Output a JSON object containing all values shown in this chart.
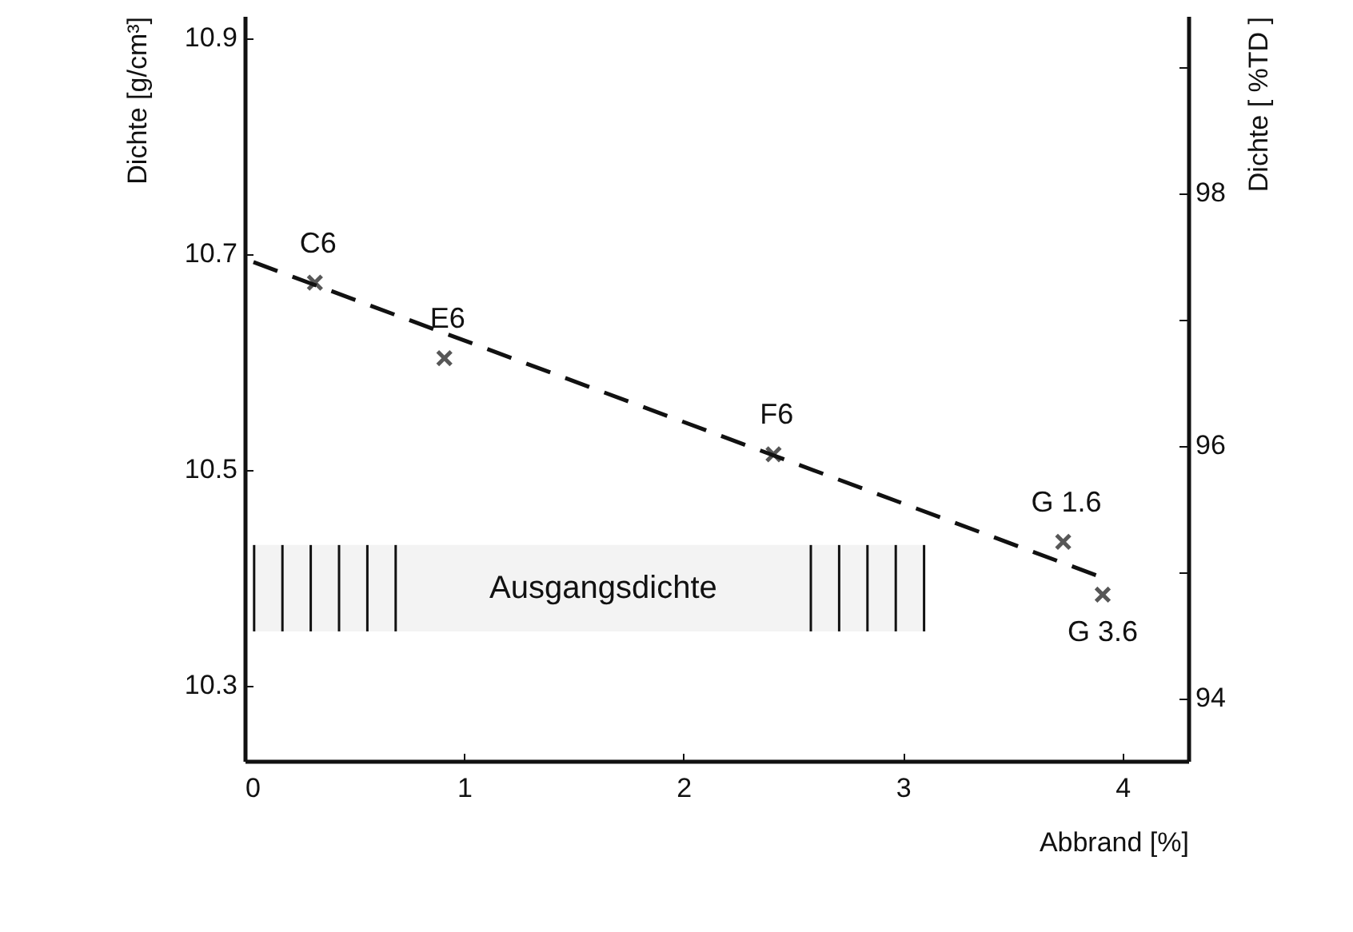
{
  "chart_data": {
    "type": "scatter",
    "xlabel": "Abbrand [%]",
    "ylabel": "Dichte [g/cm³]",
    "y2label": "Dichte [ %TD ]",
    "xlim": [
      0,
      4.3
    ],
    "xticks": [
      0,
      1,
      2,
      3,
      4
    ],
    "ylim": [
      10.23,
      10.92
    ],
    "yticks": [
      10.3,
      10.5,
      10.7,
      10.9
    ],
    "y2lim": [
      93.5,
      99.4
    ],
    "y2ticks": [
      94,
      {
        "value": 95,
        "label": null
      },
      96,
      {
        "value": 97,
        "label": null
      },
      98,
      {
        "value": 99,
        "label": null
      }
    ],
    "series": [
      {
        "color": "#111111",
        "x": [
          0.32,
          0.91,
          2.41,
          3.73,
          3.91
        ],
        "values": [
          10.673,
          10.603,
          10.514,
          10.433,
          10.384
        ],
        "marker": "cross"
      },
      {
        "type": "line",
        "color": "#111111",
        "x": [
          0.04,
          3.88
        ],
        "values": [
          10.692,
          10.402
        ],
        "marker": "none",
        "line_style": "dashed"
      }
    ],
    "grid": false,
    "bands": [
      {
        "axis": "y",
        "from": 10.35,
        "to": 10.43,
        "label": "Ausgangsdichte"
      }
    ],
    "annotations": [
      {
        "text": "C6",
        "x": 0.32,
        "y": 10.673
      },
      {
        "text": "E6",
        "x": 0.91,
        "y": 10.603
      },
      {
        "text": "F6",
        "x": 2.41,
        "y": 10.514
      },
      {
        "text": "G 1.6",
        "x": 3.73,
        "y": 10.433
      },
      {
        "text": "G 3.6",
        "x": 3.91,
        "y": 10.384
      }
    ]
  }
}
